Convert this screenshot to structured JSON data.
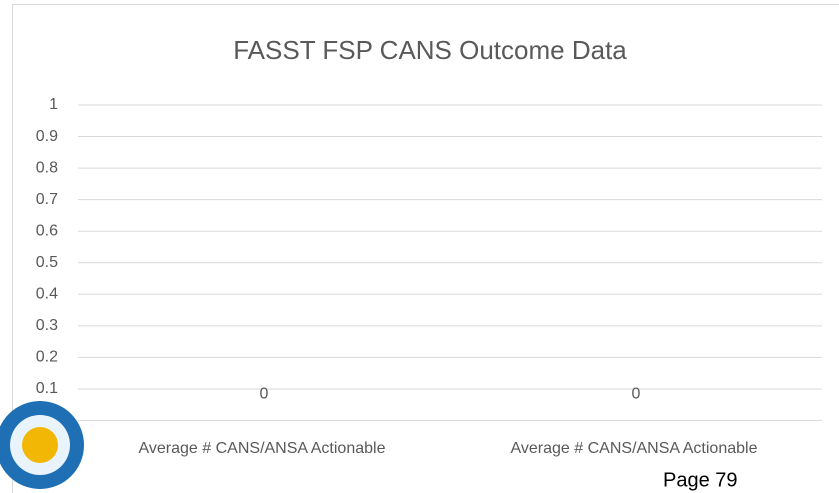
{
  "chart_data": {
    "type": "bar",
    "title": "FASST FSP CANS Outcome Data",
    "categories": [
      "Average # CANS/ANSA Actionable",
      "Average # CANS/ANSA Actionable"
    ],
    "values": [
      0,
      0
    ],
    "color": "#4472c4",
    "ylim": [
      0,
      1
    ],
    "yticks": [
      0.1,
      0.2,
      0.3,
      0.4,
      0.5,
      0.6,
      0.7,
      0.8,
      0.9,
      1
    ],
    "grid": true
  },
  "footer": {
    "page": "Page 79"
  }
}
